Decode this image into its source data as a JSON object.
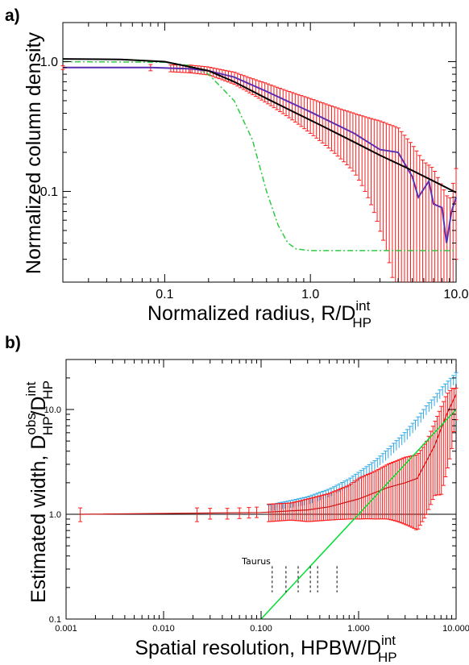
{
  "chart_data": [
    {
      "panel": "a)",
      "type": "line",
      "x_scale": "log",
      "y_scale": "log",
      "xlim": [
        0.02,
        10.0
      ],
      "ylim": [
        0.02,
        2.0
      ],
      "xlabel": "Normalized radius, R/D",
      "xlabel_sup": "int",
      "xlabel_sub": "HP",
      "ylabel": "Normalized column density",
      "x_tick_labels": [
        {
          "value": 0.1,
          "label": "0.1"
        },
        {
          "value": 1.0,
          "label": "1.0"
        },
        {
          "value": 10.0,
          "label": "10.0"
        }
      ],
      "y_tick_labels": [
        {
          "value": 0.1,
          "label": "0.1"
        },
        {
          "value": 1.0,
          "label": "1.0"
        }
      ],
      "series": [
        {
          "color": "#000000",
          "style": "solid",
          "x": [
            0.02,
            0.05,
            0.1,
            0.2,
            0.3,
            0.5,
            0.8,
            1.2,
            2.0,
            3.0,
            5.0,
            7.0,
            10.0
          ],
          "y": [
            1.05,
            1.04,
            1.0,
            0.85,
            0.7,
            0.52,
            0.4,
            0.32,
            0.24,
            0.19,
            0.145,
            0.12,
            0.098
          ]
        },
        {
          "color": "#ff1a1a",
          "style": "error-bars",
          "x": [
            0.02,
            0.08,
            0.15,
            0.2,
            0.3,
            0.5,
            1.0,
            2.0,
            3.0,
            4.0,
            5.0,
            6.0,
            7.0,
            8.0,
            9.0,
            10.0
          ],
          "y": [
            0.9,
            0.9,
            0.88,
            0.85,
            0.75,
            0.58,
            0.4,
            0.27,
            0.2,
            0.16,
            0.12,
            0.09,
            0.08,
            0.06,
            0.045,
            0.09
          ],
          "err": [
            0.03,
            0.05,
            0.06,
            0.06,
            0.08,
            0.1,
            0.12,
            0.13,
            0.15,
            0.15,
            0.11,
            0.08,
            0.07,
            0.05,
            0.04,
            0.06
          ]
        },
        {
          "color": "#5b2fb0",
          "style": "solid",
          "x": [
            0.02,
            0.08,
            0.15,
            0.2,
            0.3,
            0.5,
            1.0,
            2.0,
            3.0,
            4.0,
            5.0,
            5.5,
            6.5,
            7.0,
            8.0,
            8.6,
            9.3,
            10.0
          ],
          "y": [
            0.9,
            0.9,
            0.88,
            0.85,
            0.76,
            0.59,
            0.41,
            0.28,
            0.21,
            0.2,
            0.13,
            0.09,
            0.12,
            0.08,
            0.075,
            0.04,
            0.07,
            0.09
          ]
        },
        {
          "color": "#2ecc40",
          "style": "dash-dot",
          "x": [
            0.02,
            0.1,
            0.15,
            0.2,
            0.3,
            0.4,
            0.5,
            0.6,
            0.7,
            0.8,
            1.0,
            3.0,
            10.0
          ],
          "y": [
            1.0,
            0.99,
            0.93,
            0.8,
            0.5,
            0.25,
            0.1,
            0.055,
            0.04,
            0.036,
            0.035,
            0.035,
            0.035
          ]
        }
      ]
    },
    {
      "panel": "b)",
      "type": "line",
      "x_scale": "log",
      "y_scale": "log",
      "xlim": [
        0.001,
        10.0
      ],
      "ylim": [
        0.1,
        30.0
      ],
      "xlabel": "Spatial resolution, HPBW/D",
      "xlabel_sup": "int",
      "xlabel_sub": "HP",
      "ylabel": "Estimated width, D",
      "ylabel_part1_sup": "obs",
      "ylabel_part1_sub": "HP",
      "ylabel_sep": "/D",
      "ylabel_part2_sup": "int",
      "ylabel_part2_sub": "HP",
      "x_tick_labels": [
        {
          "value": 0.001,
          "label": "0.001"
        },
        {
          "value": 0.01,
          "label": "0.010"
        },
        {
          "value": 0.1,
          "label": "0.100"
        },
        {
          "value": 1.0,
          "label": "1.000"
        },
        {
          "value": 10.0,
          "label": "10.000"
        }
      ],
      "y_tick_labels": [
        {
          "value": 0.1,
          "label": "0.1"
        },
        {
          "value": 1.0,
          "label": "1.0"
        },
        {
          "value": 10.0,
          "label": "10.0"
        }
      ],
      "annotation": "Taurus",
      "taurus_x": [
        0.13,
        0.18,
        0.24,
        0.32,
        0.38,
        0.6
      ],
      "hline_y": 1.0,
      "series": [
        {
          "color": "#00dd33",
          "style": "solid",
          "x": [
            0.1,
            10.0
          ],
          "y": [
            0.1,
            10.0
          ]
        },
        {
          "color": "#2ea8e6",
          "style": "error-band",
          "x": [
            0.12,
            0.2,
            0.3,
            0.5,
            0.8,
            1.0,
            1.5,
            2.0,
            3.0,
            4.0,
            5.0,
            6.0,
            7.0,
            8.0,
            9.0,
            10.0
          ],
          "y": [
            1.15,
            1.25,
            1.35,
            1.6,
            2.0,
            2.3,
            3.0,
            3.8,
            5.5,
            7.5,
            10.0,
            12.0,
            14.5,
            16.5,
            18.5,
            20.0
          ],
          "err": [
            0.08,
            0.1,
            0.12,
            0.14,
            0.18,
            0.22,
            0.3,
            0.4,
            0.6,
            0.8,
            1.0,
            1.2,
            1.4,
            1.6,
            1.8,
            2.5
          ]
        },
        {
          "color": "#ff1a1a",
          "style": "error-bars",
          "x": [
            0.0014,
            0.022,
            0.03,
            0.045,
            0.06,
            0.075,
            0.09,
            0.12,
            0.2,
            0.3,
            0.5,
            0.8,
            1.0,
            1.5,
            2.0,
            3.0,
            4.0,
            5.0,
            6.0,
            7.0,
            8.0,
            9.0,
            10.0
          ],
          "y": [
            1.0,
            1.0,
            1.02,
            1.02,
            1.03,
            1.04,
            1.05,
            1.05,
            1.08,
            1.1,
            1.18,
            1.3,
            1.4,
            1.6,
            1.8,
            2.0,
            2.2,
            3.0,
            4.5,
            6.5,
            9.0,
            12.0,
            14.0
          ],
          "err_low": [
            0.15,
            0.15,
            0.12,
            0.12,
            0.12,
            0.12,
            0.12,
            0.2,
            0.2,
            0.25,
            0.3,
            0.4,
            0.5,
            0.7,
            0.9,
            1.2,
            1.5,
            2.0,
            3.0,
            5.0,
            6.5,
            8.0,
            6.0
          ],
          "err_high": [
            0.15,
            0.15,
            0.12,
            0.12,
            0.12,
            0.12,
            0.12,
            0.2,
            0.2,
            0.3,
            0.4,
            0.6,
            0.8,
            1.0,
            1.2,
            1.5,
            1.5,
            2.0,
            3.0,
            4.0,
            5.0,
            4.0,
            2.0
          ]
        },
        {
          "color": "#cc1111",
          "style": "solid",
          "x": [
            0.0014,
            0.1,
            0.3,
            0.5,
            1.0,
            2.0,
            3.0,
            4.0,
            6.0,
            8.0,
            10.0
          ],
          "y": [
            1.0,
            1.04,
            1.1,
            1.18,
            1.4,
            1.8,
            2.0,
            2.2,
            4.5,
            9.0,
            14.0
          ]
        }
      ]
    }
  ]
}
